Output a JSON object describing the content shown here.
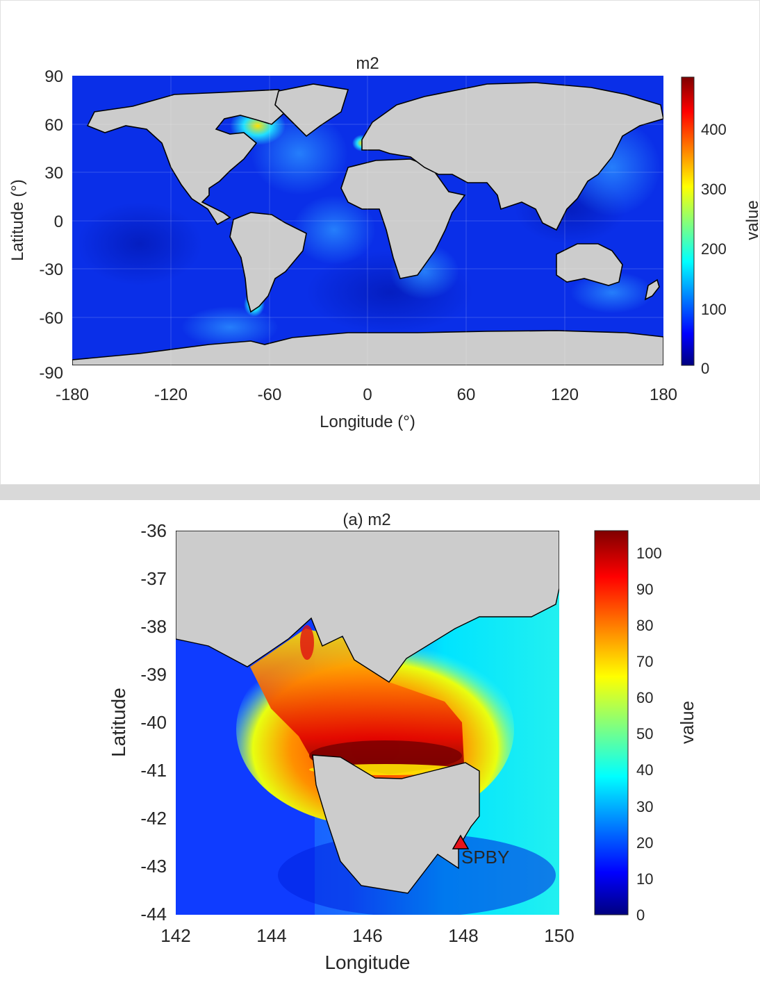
{
  "top_chart": {
    "title": "m2",
    "xlabel": "Longitude (°)",
    "ylabel": "Latitude (°)",
    "colorbar_label": "value",
    "xticks": [
      "-180",
      "-120",
      "-60",
      "0",
      "60",
      "120",
      "180"
    ],
    "yticks": [
      "90",
      "60",
      "30",
      "0",
      "-30",
      "-60",
      "-90"
    ],
    "cbar_ticks": [
      "0",
      "100",
      "200",
      "300",
      "400"
    ]
  },
  "bottom_chart": {
    "title": "(a) m2",
    "xlabel": "Longitude",
    "ylabel": "Latitude",
    "colorbar_label": "value",
    "xticks": [
      "142",
      "144",
      "146",
      "148",
      "150"
    ],
    "yticks": [
      "-36",
      "-37",
      "-38",
      "-39",
      "-40",
      "-41",
      "-42",
      "-43",
      "-44"
    ],
    "cbar_ticks": [
      "0",
      "10",
      "20",
      "30",
      "40",
      "50",
      "60",
      "70",
      "80",
      "90",
      "100"
    ],
    "station_label": "SPBY"
  },
  "colors": {
    "land": "#cccccc",
    "ocean_base": "#0a2fe8",
    "station_marker": "#e8141c"
  },
  "chart_data": [
    {
      "type": "heatmap",
      "title": "m2",
      "xlabel": "Longitude (°)",
      "ylabel": "Latitude (°)",
      "xlim": [
        -180,
        180
      ],
      "ylim": [
        -90,
        90
      ],
      "colorbar": {
        "label": "value",
        "range": [
          0,
          480
        ],
        "ticks": [
          0,
          100,
          200,
          300,
          400
        ],
        "colormap": "jet"
      },
      "grid": true,
      "land_color": "gray"
    },
    {
      "type": "heatmap",
      "title": "(a) m2",
      "xlabel": "Longitude",
      "ylabel": "Latitude",
      "xlim": [
        142,
        150
      ],
      "ylim": [
        -44,
        -36
      ],
      "colorbar": {
        "label": "value",
        "range": [
          0,
          106
        ],
        "ticks": [
          0,
          10,
          20,
          30,
          40,
          50,
          60,
          70,
          80,
          90,
          100
        ],
        "colormap": "jet"
      },
      "markers": [
        {
          "name": "SPBY",
          "lon": 147.95,
          "lat": -42.65,
          "symbol": "triangle",
          "color": "red"
        }
      ],
      "land_color": "gray"
    }
  ]
}
